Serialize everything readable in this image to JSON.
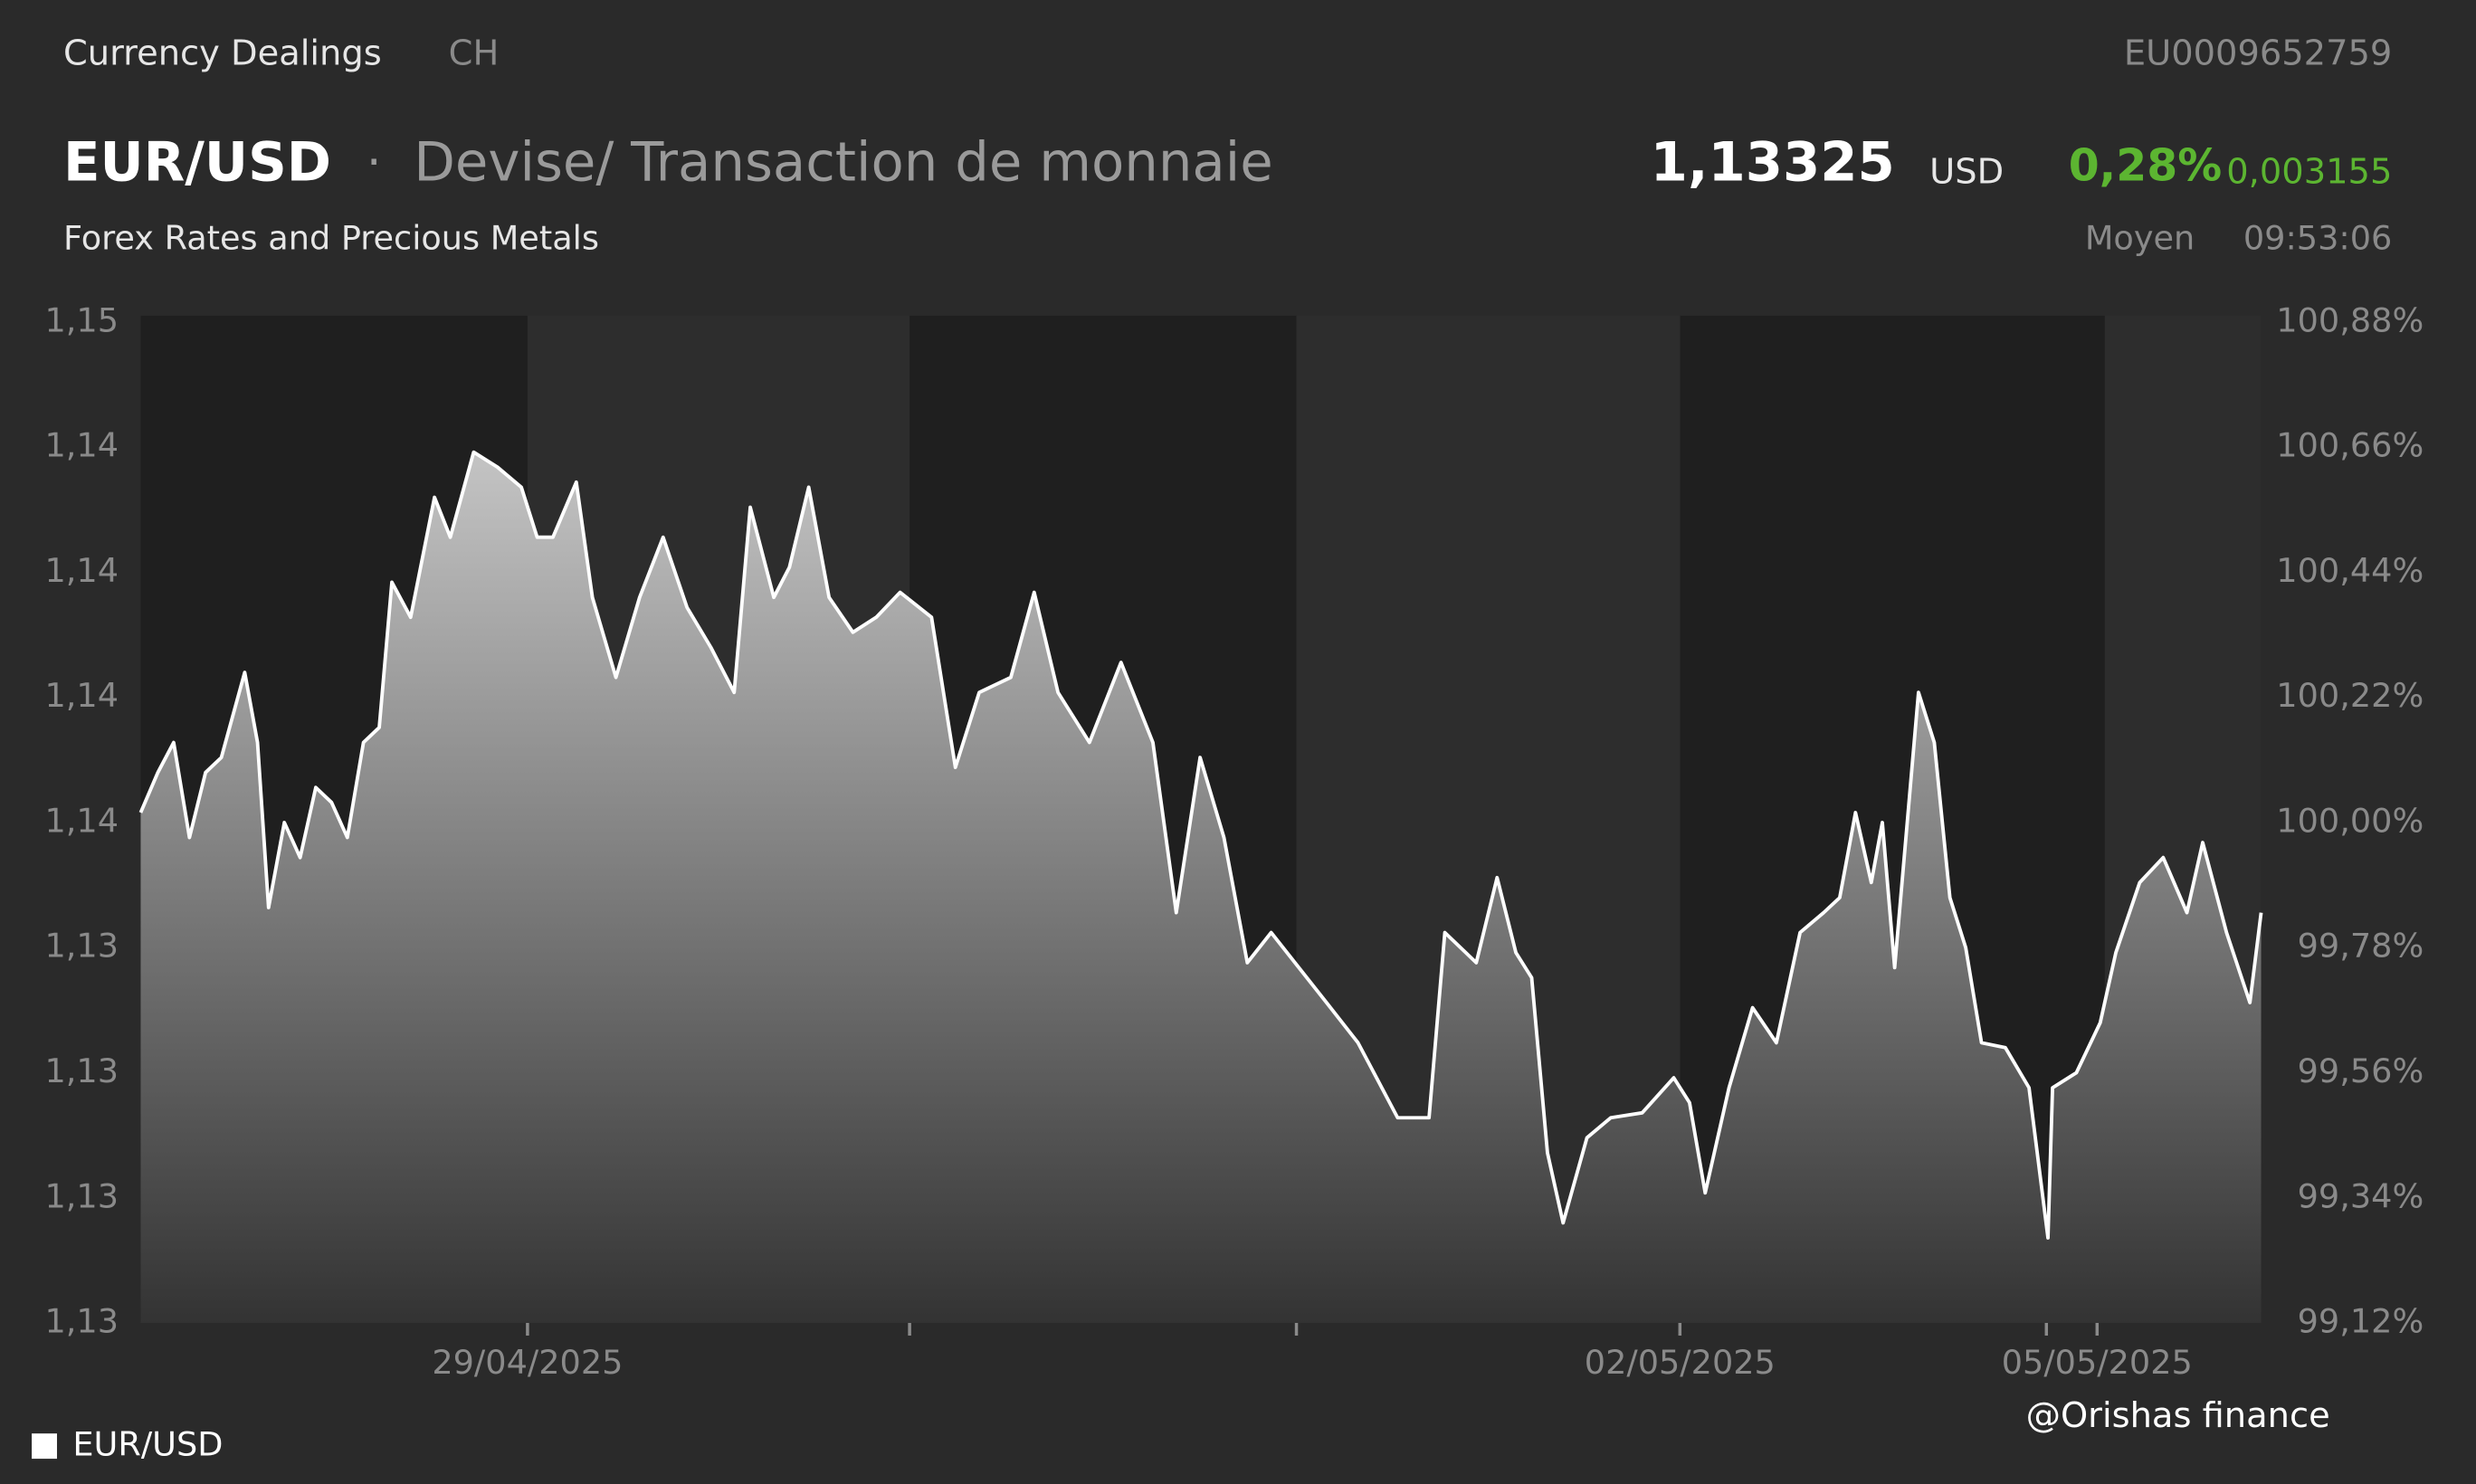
{
  "header": {
    "section": "Currency Dealings",
    "country": "CH",
    "isin": "EU0009652759",
    "symbol": "EUR/USD",
    "separator": "·",
    "instrument": "Devise/ Transaction de monnaie",
    "category": "Forex Rates and Precious Metals",
    "price": "1,13325",
    "currency": "USD",
    "change_pct": "0,28%",
    "change_abs": "0,003155",
    "price_type": "Moyen",
    "time": "09:53:06",
    "watermark": "@Orishas finance"
  },
  "chart_data": {
    "type": "area",
    "x": [
      -1.007,
      -0.962,
      -0.921,
      -0.88,
      -0.838,
      -0.797,
      -0.736,
      -0.703,
      -0.674,
      -0.633,
      -0.592,
      -0.551,
      -0.51,
      -0.469,
      -0.427,
      -0.386,
      -0.353,
      -0.304,
      -0.242,
      -0.201,
      -0.14,
      -0.078,
      -0.016,
      0.025,
      0.066,
      0.127,
      0.169,
      0.23,
      0.292,
      0.353,
      0.415,
      0.477,
      0.538,
      0.58,
      0.641,
      0.682,
      0.732,
      0.785,
      0.847,
      0.908,
      0.97,
      1.052,
      1.114,
      1.176,
      1.258,
      1.319,
      1.381,
      1.463,
      1.545,
      1.628,
      1.689,
      1.751,
      1.813,
      1.874,
      1.936,
      1.998,
      2.08,
      2.162,
      2.265,
      2.347,
      2.388,
      2.47,
      2.524,
      2.573,
      2.614,
      2.655,
      2.696,
      2.758,
      2.82,
      2.902,
      2.984,
      3.025,
      3.066,
      3.128,
      3.189,
      3.251,
      3.313,
      3.374,
      3.416,
      3.457,
      3.498,
      3.527,
      3.559,
      3.621,
      3.662,
      3.703,
      3.744,
      3.785,
      3.847,
      3.909,
      3.958,
      3.97,
      4.032,
      4.094,
      4.135,
      4.197,
      4.258,
      4.32,
      4.361,
      4.423,
      4.484,
      4.513
    ],
    "series": [
      {
        "name": "EUR/USD",
        "color": "#ffffff",
        "values": [
          1.1352,
          1.136,
          1.1366,
          1.1347,
          1.136,
          1.1363,
          1.138,
          1.1366,
          1.1333,
          1.135,
          1.1343,
          1.1357,
          1.1354,
          1.1347,
          1.1366,
          1.1369,
          1.1398,
          1.1391,
          1.1415,
          1.1407,
          1.1424,
          1.1421,
          1.1417,
          1.1407,
          1.1407,
          1.1418,
          1.1395,
          1.1379,
          1.1395,
          1.1407,
          1.1393,
          1.1385,
          1.1376,
          1.1413,
          1.1395,
          1.1401,
          1.1417,
          1.1395,
          1.1388,
          1.1391,
          1.1396,
          1.1391,
          1.1361,
          1.1376,
          1.1379,
          1.1396,
          1.1376,
          1.1366,
          1.1382,
          1.1366,
          1.1332,
          1.1363,
          1.1347,
          1.1322,
          1.1328,
          1.1322,
          1.1314,
          1.1306,
          1.1291,
          1.1291,
          1.1328,
          1.1322,
          1.1339,
          1.1324,
          1.1319,
          1.1284,
          1.127,
          1.1287,
          1.1291,
          1.1292,
          1.1299,
          1.1294,
          1.1276,
          1.1297,
          1.1313,
          1.1306,
          1.1328,
          1.1332,
          1.1335,
          1.1352,
          1.1338,
          1.135,
          1.1321,
          1.1376,
          1.1366,
          1.1335,
          1.1325,
          1.1306,
          1.1305,
          1.1297,
          1.1267,
          1.1297,
          1.13,
          1.131,
          1.1324,
          1.1338,
          1.1343,
          1.1332,
          1.1346,
          1.1328,
          1.1314,
          1.1332
        ]
      }
    ],
    "xlim": [
      -1.007,
      4.513
    ],
    "xticks": [
      {
        "value": 0,
        "label": "29/04/2025"
      },
      {
        "value": 3,
        "label": "02/05/2025"
      },
      {
        "value": 4.086,
        "label": "05/05/2025"
      }
    ],
    "ylim": [
      1.125,
      1.145
    ],
    "yticks": [
      {
        "value": 1.125,
        "label": "1,13"
      },
      {
        "value": 1.1275,
        "label": "1,13"
      },
      {
        "value": 1.13,
        "label": "1,13"
      },
      {
        "value": 1.1325,
        "label": "1,13"
      },
      {
        "value": 1.135,
        "label": "1,14"
      },
      {
        "value": 1.1375,
        "label": "1,14"
      },
      {
        "value": 1.14,
        "label": "1,14"
      },
      {
        "value": 1.1425,
        "label": "1,14"
      },
      {
        "value": 1.145,
        "label": "1,15"
      }
    ],
    "y2lim": [
      99.12,
      100.88
    ],
    "y2ticks": [
      {
        "value": 99.12,
        "label": "99,12%"
      },
      {
        "value": 99.34,
        "label": "99,34%"
      },
      {
        "value": 99.56,
        "label": "99,56%"
      },
      {
        "value": 99.78,
        "label": "99,78%"
      },
      {
        "value": 100.0,
        "label": "100,00%"
      },
      {
        "value": 100.22,
        "label": "100,22%"
      },
      {
        "value": 100.44,
        "label": "100,44%"
      },
      {
        "value": 100.66,
        "label": "100,66%"
      },
      {
        "value": 100.88,
        "label": "100,88%"
      }
    ],
    "legend": "bottom-left"
  }
}
